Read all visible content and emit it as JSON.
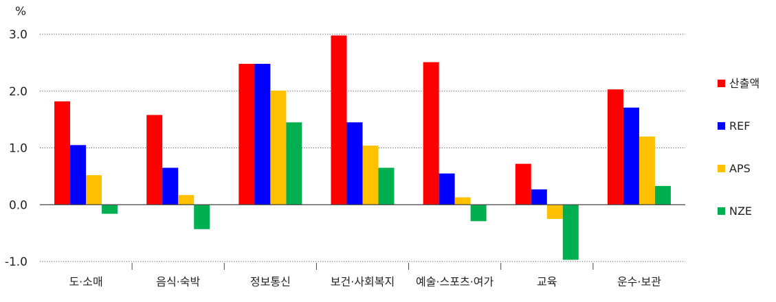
{
  "chart_data": {
    "type": "bar",
    "unit_label": "%",
    "categories": [
      "도·소매",
      "음식·숙박",
      "정보통신",
      "보건·사회복지",
      "예술·스포츠·여가",
      "교육",
      "운수·보관"
    ],
    "series": [
      {
        "name": "산출액",
        "color": "#ff0000",
        "values": [
          1.82,
          1.58,
          2.48,
          2.98,
          2.51,
          0.72,
          2.03
        ]
      },
      {
        "name": "REF",
        "color": "#0000ff",
        "values": [
          1.05,
          0.65,
          2.48,
          1.45,
          0.55,
          0.27,
          1.71
        ]
      },
      {
        "name": "APS",
        "color": "#ffc000",
        "values": [
          0.52,
          0.17,
          2.01,
          1.04,
          0.13,
          -0.25,
          1.2
        ]
      },
      {
        "name": "NZE",
        "color": "#00b050",
        "values": [
          -0.16,
          -0.43,
          1.45,
          0.65,
          -0.29,
          -0.97,
          0.33
        ]
      }
    ],
    "y_ticks": [
      "3.0",
      "2.0",
      "1.0",
      "0.0",
      "-1.0"
    ],
    "ylim": [
      -1.0,
      3.0
    ],
    "grid": true,
    "legend_position": "right"
  }
}
